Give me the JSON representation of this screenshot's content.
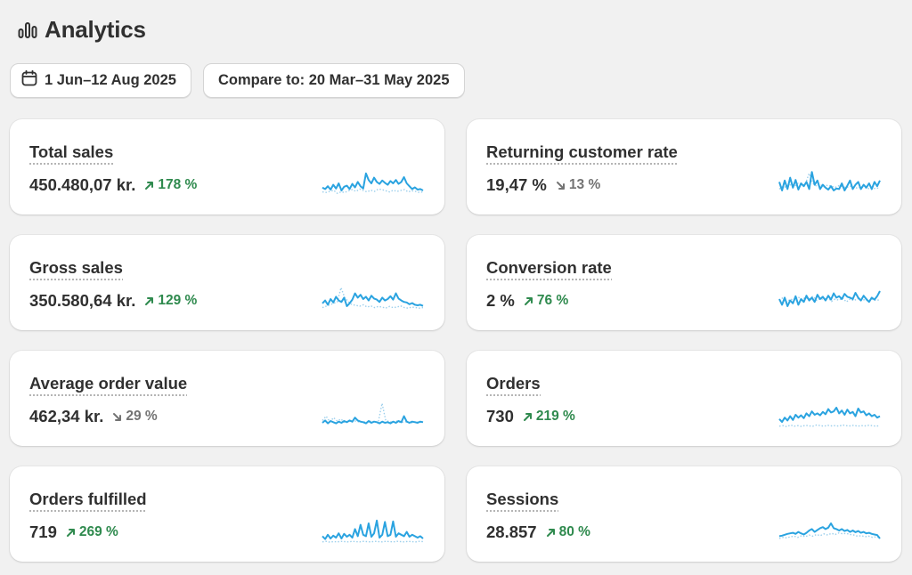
{
  "page": {
    "title": "Analytics",
    "icon": "bar-chart-icon"
  },
  "toolbar": {
    "date_range_label": "1 Jun–12 Aug 2025",
    "date_icon": "calendar-icon",
    "compare_label": "Compare to: 20 Mar–31 May 2025"
  },
  "colors": {
    "accent": "#2aa3e0",
    "comparison_dotted": "#9ccfec",
    "positive": "#2f8a4e",
    "neutral": "#737373"
  },
  "metrics": [
    {
      "title": "Total sales",
      "value": "450.480,07 kr.",
      "change": "178 %",
      "direction": "up",
      "spark": [
        0.35,
        0.3,
        0.4,
        0.28,
        0.45,
        0.32,
        0.5,
        0.25,
        0.38,
        0.42,
        0.3,
        0.48,
        0.36,
        0.55,
        0.4,
        0.32,
        0.85,
        0.62,
        0.5,
        0.7,
        0.55,
        0.48,
        0.6,
        0.52,
        0.45,
        0.58,
        0.5,
        0.62,
        0.48,
        0.55,
        0.72,
        0.5,
        0.4,
        0.3,
        0.36,
        0.28,
        0.3,
        0.25
      ],
      "compare": [
        0.2,
        0.18,
        0.22,
        0.26,
        0.15,
        0.2,
        0.18,
        0.24,
        0.28,
        0.22,
        0.3,
        0.25,
        0.2,
        0.26,
        0.22,
        0.3,
        0.28,
        0.24,
        0.2,
        0.26,
        0.22,
        0.25,
        0.28,
        0.2,
        0.24,
        0.22,
        0.18,
        0.2
      ]
    },
    {
      "title": "Returning customer rate",
      "value": "19,47 %",
      "change": "13 %",
      "direction": "down",
      "spark": [
        0.55,
        0.25,
        0.6,
        0.3,
        0.7,
        0.35,
        0.62,
        0.28,
        0.5,
        0.4,
        0.55,
        0.3,
        0.9,
        0.45,
        0.6,
        0.3,
        0.45,
        0.35,
        0.28,
        0.4,
        0.25,
        0.32,
        0.3,
        0.5,
        0.25,
        0.42,
        0.6,
        0.3,
        0.45,
        0.55,
        0.3,
        0.45,
        0.35,
        0.5,
        0.3,
        0.55,
        0.4,
        0.6
      ],
      "compare": [
        0.3,
        0.4,
        0.35,
        0.45,
        0.38,
        0.5,
        0.42,
        0.48,
        0.85,
        0.5,
        0.4,
        0.46,
        0.38,
        0.44,
        0.4,
        0.36,
        0.42,
        0.38,
        0.35,
        0.4,
        0.36,
        0.33,
        0.38,
        0.35,
        0.32,
        0.3,
        0.34,
        0.32
      ]
    },
    {
      "title": "Gross sales",
      "value": "350.580,64 kr.",
      "change": "129 %",
      "direction": "up",
      "spark": [
        0.35,
        0.45,
        0.3,
        0.5,
        0.38,
        0.58,
        0.45,
        0.4,
        0.55,
        0.25,
        0.35,
        0.48,
        0.7,
        0.55,
        0.65,
        0.5,
        0.58,
        0.45,
        0.62,
        0.52,
        0.48,
        0.4,
        0.55,
        0.45,
        0.5,
        0.6,
        0.48,
        0.7,
        0.52,
        0.45,
        0.4,
        0.38,
        0.32,
        0.36,
        0.3,
        0.28,
        0.3,
        0.26
      ],
      "compare": [
        0.2,
        0.25,
        0.3,
        0.35,
        0.4,
        0.9,
        0.55,
        0.4,
        0.3,
        0.28,
        0.25,
        0.3,
        0.22,
        0.26,
        0.2,
        0.24,
        0.22,
        0.18,
        0.24,
        0.2,
        0.22,
        0.26,
        0.2,
        0.18,
        0.22,
        0.2,
        0.18,
        0.2
      ]
    },
    {
      "title": "Conversion rate",
      "value": "2 %",
      "change": "76 %",
      "direction": "up",
      "spark": [
        0.5,
        0.3,
        0.55,
        0.25,
        0.45,
        0.35,
        0.6,
        0.3,
        0.5,
        0.4,
        0.62,
        0.45,
        0.55,
        0.4,
        0.65,
        0.5,
        0.58,
        0.45,
        0.62,
        0.48,
        0.7,
        0.55,
        0.6,
        0.5,
        0.68,
        0.58,
        0.55,
        0.5,
        0.72,
        0.55,
        0.45,
        0.62,
        0.5,
        0.4,
        0.55,
        0.48,
        0.6,
        0.78
      ],
      "compare": [
        0.45,
        0.55,
        0.4,
        0.5,
        0.45,
        0.58,
        0.48,
        0.55,
        0.5,
        0.6,
        0.45,
        0.52,
        0.48,
        0.56,
        0.42,
        0.5,
        0.46,
        0.54,
        0.4,
        0.5,
        0.44,
        0.52,
        0.46,
        0.48,
        0.42,
        0.5,
        0.45,
        0.48
      ]
    },
    {
      "title": "Average order value",
      "value": "462,34 kr.",
      "change": "29 %",
      "direction": "down",
      "spark": [
        0.22,
        0.3,
        0.2,
        0.28,
        0.24,
        0.2,
        0.26,
        0.22,
        0.28,
        0.24,
        0.3,
        0.26,
        0.4,
        0.3,
        0.26,
        0.24,
        0.2,
        0.28,
        0.22,
        0.26,
        0.24,
        0.2,
        0.26,
        0.22,
        0.24,
        0.2,
        0.26,
        0.22,
        0.28,
        0.24,
        0.45,
        0.26,
        0.22,
        0.26,
        0.24,
        0.22,
        0.26,
        0.24
      ],
      "compare": [
        0.3,
        0.45,
        0.25,
        0.4,
        0.28,
        0.35,
        0.22,
        0.3,
        0.25,
        0.28,
        0.24,
        0.26,
        0.22,
        0.28,
        0.24,
        0.26,
        0.9,
        0.3,
        0.26,
        0.24,
        0.28,
        0.22,
        0.26,
        0.24,
        0.22,
        0.26,
        0.24,
        0.22
      ]
    },
    {
      "title": "Orders",
      "value": "730",
      "change": "219 %",
      "direction": "up",
      "spark": [
        0.35,
        0.25,
        0.4,
        0.3,
        0.45,
        0.32,
        0.5,
        0.4,
        0.48,
        0.38,
        0.55,
        0.45,
        0.62,
        0.5,
        0.55,
        0.48,
        0.6,
        0.52,
        0.7,
        0.58,
        0.62,
        0.75,
        0.55,
        0.65,
        0.5,
        0.68,
        0.55,
        0.6,
        0.45,
        0.72,
        0.58,
        0.62,
        0.48,
        0.55,
        0.45,
        0.5,
        0.4,
        0.45
      ],
      "compare": [
        0.1,
        0.12,
        0.08,
        0.14,
        0.1,
        0.12,
        0.09,
        0.13,
        0.11,
        0.1,
        0.14,
        0.12,
        0.1,
        0.13,
        0.11,
        0.12,
        0.1,
        0.14,
        0.12,
        0.11,
        0.13,
        0.1,
        0.12,
        0.11,
        0.13,
        0.12,
        0.1,
        0.12
      ]
    },
    {
      "title": "Orders fulfilled",
      "value": "719",
      "change": "269 %",
      "direction": "up",
      "spark": [
        0.3,
        0.2,
        0.35,
        0.22,
        0.32,
        0.25,
        0.4,
        0.22,
        0.38,
        0.28,
        0.35,
        0.25,
        0.55,
        0.3,
        0.7,
        0.35,
        0.3,
        0.75,
        0.28,
        0.4,
        0.85,
        0.25,
        0.35,
        0.8,
        0.3,
        0.35,
        0.82,
        0.28,
        0.4,
        0.35,
        0.3,
        0.45,
        0.28,
        0.35,
        0.3,
        0.25,
        0.3,
        0.22
      ],
      "compare": [
        0.1,
        0.12,
        0.09,
        0.11,
        0.1,
        0.12,
        0.11,
        0.1,
        0.12,
        0.11,
        0.1,
        0.12,
        0.11,
        0.1,
        0.12,
        0.11,
        0.1,
        0.12,
        0.11,
        0.1,
        0.12,
        0.11,
        0.1,
        0.12,
        0.11,
        0.1,
        0.12,
        0.11
      ]
    },
    {
      "title": "Sessions",
      "value": "28.857",
      "change": "80 %",
      "direction": "up",
      "spark": [
        0.3,
        0.32,
        0.35,
        0.38,
        0.4,
        0.42,
        0.38,
        0.45,
        0.4,
        0.36,
        0.42,
        0.5,
        0.55,
        0.45,
        0.52,
        0.58,
        0.62,
        0.55,
        0.6,
        0.75,
        0.58,
        0.55,
        0.5,
        0.55,
        0.48,
        0.52,
        0.45,
        0.5,
        0.44,
        0.48,
        0.42,
        0.45,
        0.4,
        0.42,
        0.38,
        0.36,
        0.34,
        0.22
      ],
      "compare": [
        0.22,
        0.26,
        0.24,
        0.28,
        0.3,
        0.26,
        0.32,
        0.28,
        0.34,
        0.3,
        0.36,
        0.32,
        0.38,
        0.34,
        0.4,
        0.36,
        0.42,
        0.38,
        0.4,
        0.36,
        0.34,
        0.3,
        0.32,
        0.28,
        0.3,
        0.26,
        0.28,
        0.25
      ]
    }
  ]
}
